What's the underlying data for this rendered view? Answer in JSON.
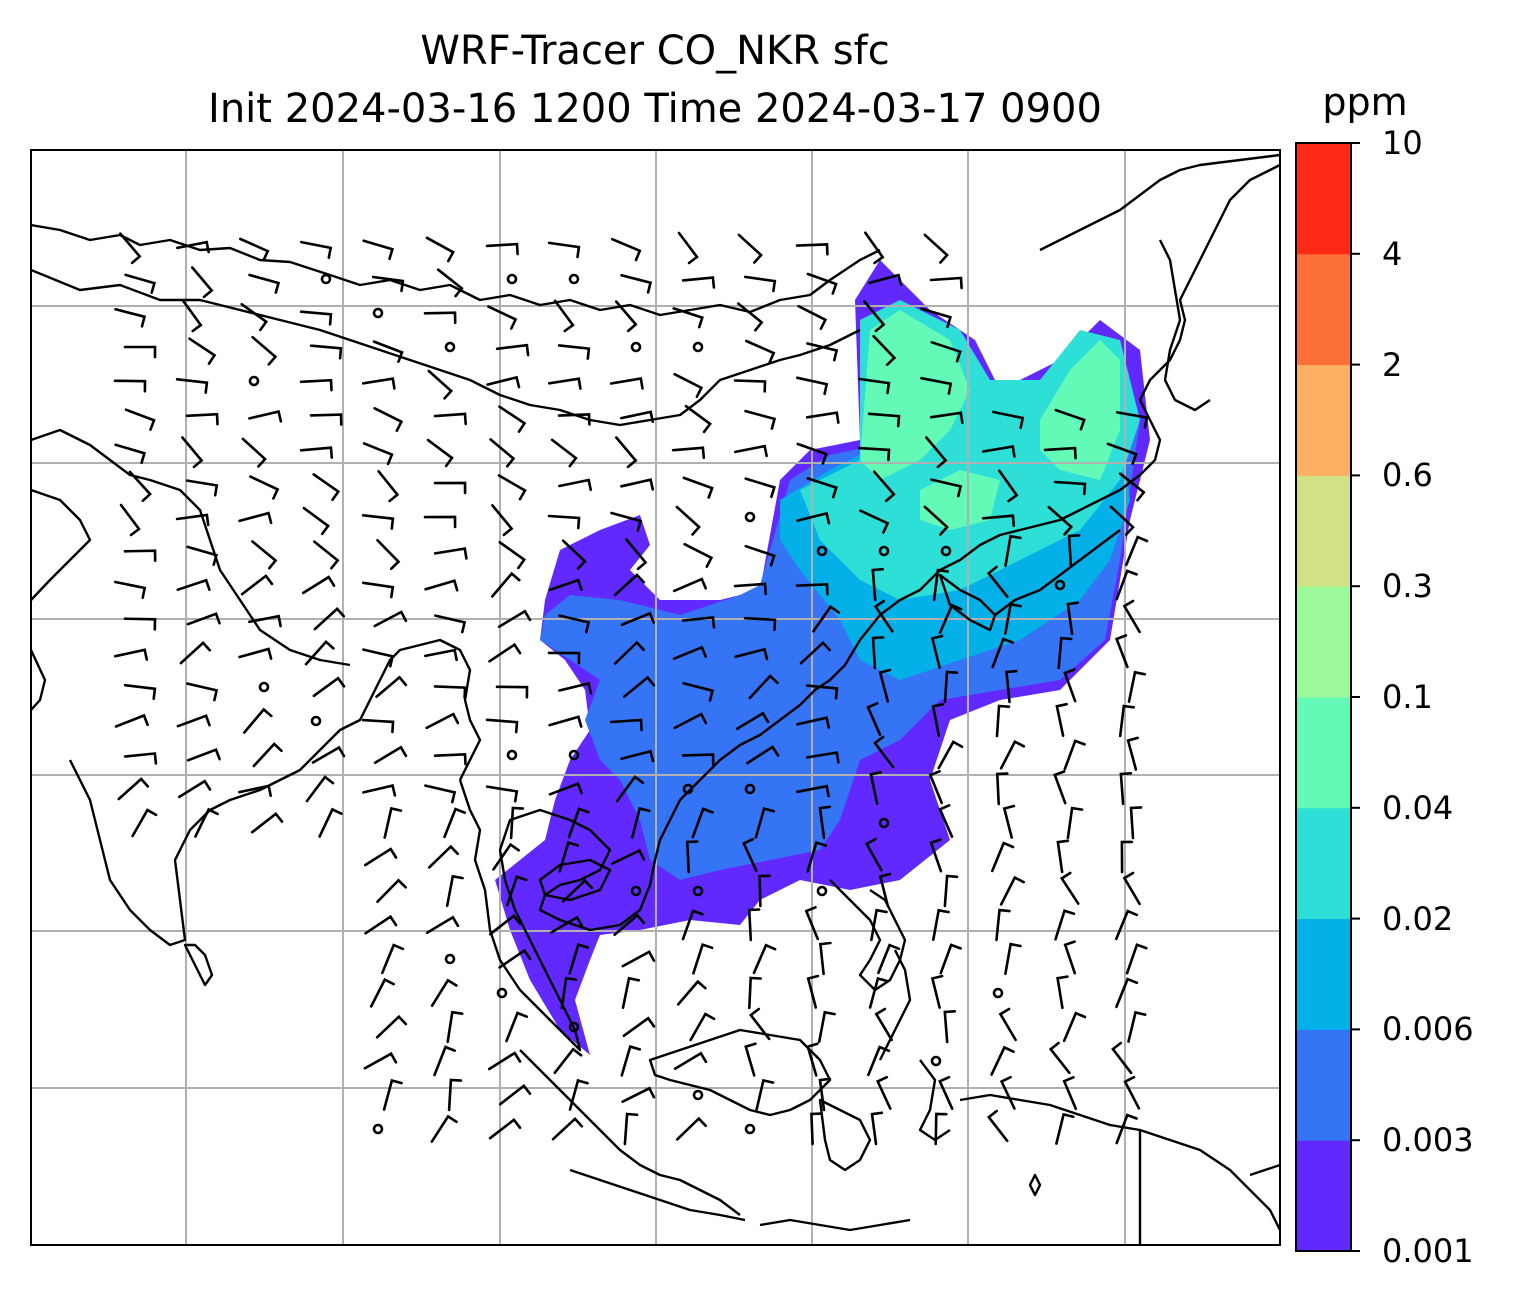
{
  "title": {
    "line1": "WRF-Tracer CO_NKR sfc",
    "line2": "Init 2024-03-16 1200 Time 2024-03-17 0900"
  },
  "colorbar": {
    "unit": "ppm",
    "levels": [
      "0.001",
      "0.003",
      "0.006",
      "0.02",
      "0.04",
      "0.1",
      "0.3",
      "0.6",
      "2",
      "4",
      "10"
    ],
    "colors": [
      "#6129fd",
      "#3474f5",
      "#04b0e8",
      "#2ddfd6",
      "#63fab8",
      "#9bf999",
      "#d2e086",
      "#fdaf63",
      "#fe703a",
      "#fe2a17"
    ]
  },
  "map": {
    "gridlines": true,
    "plume_colors": [
      "#6129fd",
      "#3474f5",
      "#04b0e8",
      "#2ddfd6",
      "#63fab8"
    ],
    "wind_barbs": true
  }
}
